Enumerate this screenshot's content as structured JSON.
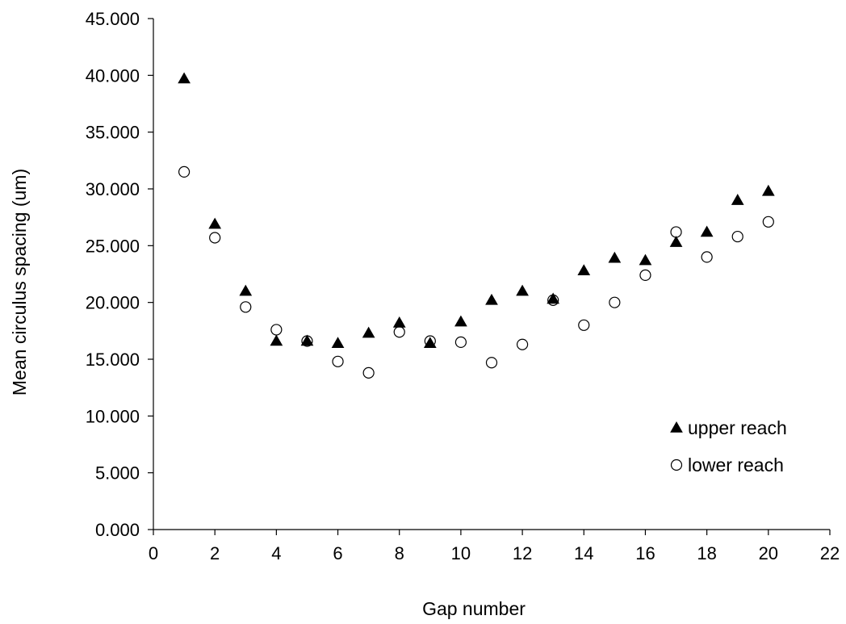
{
  "chart_data": {
    "type": "scatter",
    "title": "",
    "xlabel": "Gap number",
    "ylabel": "Mean circulus spacing (um)",
    "xlim": [
      0,
      22
    ],
    "ylim": [
      0,
      45
    ],
    "xticks": [
      0,
      2,
      4,
      6,
      8,
      10,
      12,
      14,
      16,
      18,
      20,
      22
    ],
    "yticks": [
      0,
      5,
      10,
      15,
      20,
      25,
      30,
      35,
      40,
      45
    ],
    "xtick_labels": [
      "0",
      "2",
      "4",
      "6",
      "8",
      "10",
      "12",
      "14",
      "16",
      "18",
      "20",
      "22"
    ],
    "ytick_labels": [
      "0.000",
      "5.000",
      "10.000",
      "15.000",
      "20.000",
      "25.000",
      "30.000",
      "35.000",
      "40.000",
      "45.000"
    ],
    "grid": false,
    "legend_position": "bottom-right",
    "series": [
      {
        "name": "upper reach",
        "marker": "filled-triangle",
        "color": "#000000",
        "x": [
          1,
          2,
          3,
          4,
          5,
          6,
          7,
          8,
          9,
          10,
          11,
          12,
          13,
          14,
          15,
          16,
          17,
          18,
          19,
          20
        ],
        "y": [
          39.7,
          26.9,
          21.0,
          16.6,
          16.6,
          16.4,
          17.3,
          18.2,
          16.4,
          18.3,
          20.2,
          21.0,
          20.3,
          22.8,
          23.9,
          23.7,
          25.3,
          26.2,
          29.0,
          29.8
        ]
      },
      {
        "name": "lower reach",
        "marker": "open-circle",
        "color": "#000000",
        "x": [
          1,
          2,
          3,
          4,
          5,
          6,
          7,
          8,
          9,
          10,
          11,
          12,
          13,
          14,
          15,
          16,
          17,
          18,
          19,
          20
        ],
        "y": [
          31.5,
          25.7,
          19.6,
          17.6,
          16.6,
          14.8,
          13.8,
          17.4,
          16.6,
          16.5,
          14.7,
          16.3,
          20.2,
          18.0,
          20.0,
          22.4,
          26.2,
          24.0,
          25.8,
          27.1
        ]
      }
    ]
  }
}
